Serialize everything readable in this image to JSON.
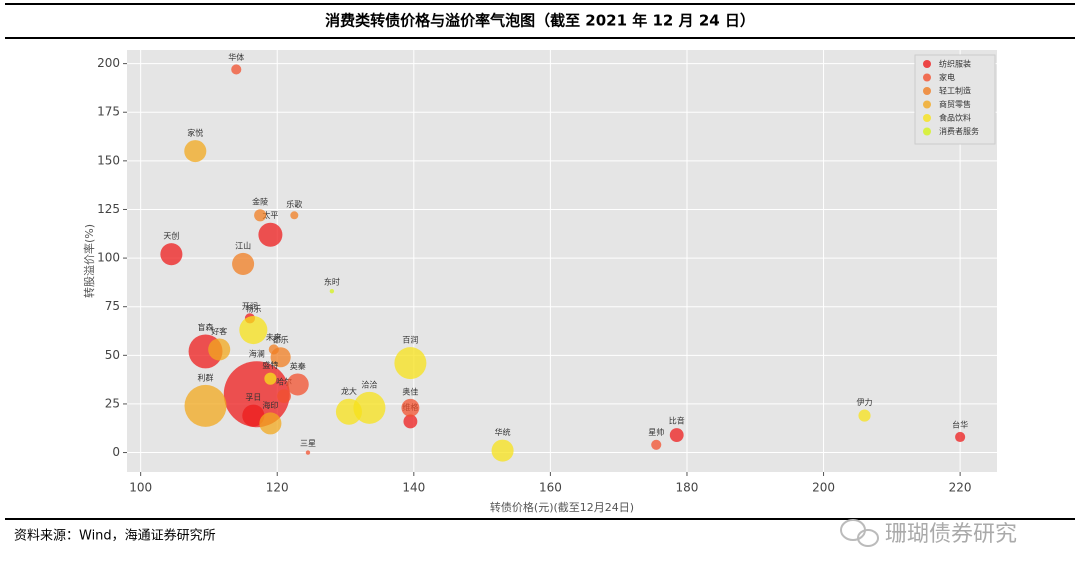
{
  "chart_data": {
    "type": "bubble",
    "title": "消费类转债价格与溢价率气泡图（截至 2021 年 12 月 24 日）",
    "x_label": "转债价格(元)(截至12月24日)",
    "y_label": "转股溢价率(%)",
    "xlim": [
      98,
      225.4
    ],
    "ylim": [
      -10,
      207
    ],
    "xticks": [
      100,
      120,
      140,
      160,
      180,
      200,
      220
    ],
    "yticks": [
      0,
      25,
      50,
      75,
      100,
      125,
      150,
      175,
      200
    ],
    "grid": true,
    "legend": "upper right",
    "series": [
      {
        "name": "纺织服装",
        "color": "#ee1c1c",
        "labels": [
          "太平",
          "天创",
          "开润",
          "盲森",
          "海澜",
          "孚日",
          "维格",
          "比音",
          "台华"
        ],
        "x": [
          119,
          104.5,
          116,
          109.5,
          117,
          116.5,
          139.5,
          178.5,
          220
        ],
        "values": [
          112,
          102,
          69,
          52,
          30,
          19,
          16,
          9,
          8
        ],
        "sizes": [
          9,
          7.6,
          1.6,
          18,
          68,
          7.6,
          3,
          3,
          1.6
        ]
      },
      {
        "name": "家电",
        "color": "#f2502e",
        "labels": [
          "华体",
          "哈尔",
          "英秦",
          "三星",
          "奥佳",
          "星帅"
        ],
        "x": [
          114,
          121,
          123,
          124.5,
          139.5,
          175.5
        ],
        "values": [
          197,
          29,
          35,
          0,
          23,
          4
        ],
        "sizes": [
          1.6,
          3,
          7.6,
          0.3,
          5,
          1.6
        ]
      },
      {
        "name": "轻工制造",
        "color": "#f07d22",
        "labels": [
          "金陵",
          "乐歌",
          "江山",
          "未来",
          "都乐"
        ],
        "x": [
          117.5,
          122.5,
          115,
          119.5,
          120.5
        ],
        "values": [
          122,
          122,
          97,
          53,
          49
        ],
        "sizes": [
          2.3,
          1,
          7.6,
          1.6,
          6.3
        ]
      },
      {
        "name": "商贸零售",
        "color": "#f2a81e",
        "labels": [
          "家悦",
          "好客",
          "利群",
          "海印"
        ],
        "x": [
          108,
          111.5,
          109.5,
          119
        ],
        "values": [
          155,
          53,
          24,
          15
        ],
        "sizes": [
          7.6,
          7.6,
          27.6,
          7.6
        ]
      },
      {
        "name": "食品饮料",
        "color": "#f7e21a",
        "labels": [
          "畅乐",
          "百润",
          "盛特",
          "龙大",
          "洽洽",
          "华统",
          "伊力"
        ],
        "x": [
          116.5,
          139.5,
          119,
          130.5,
          133.5,
          153,
          206
        ],
        "values": [
          63,
          46,
          38,
          21,
          23,
          1,
          19
        ],
        "sizes": [
          12.3,
          16,
          2.3,
          10.6,
          16,
          7.6,
          2.3
        ]
      },
      {
        "name": "消费者服务",
        "color": "#d4f21a",
        "labels": [
          "东时"
        ],
        "x": [
          128
        ],
        "values": [
          83
        ],
        "sizes": [
          0.3
        ]
      }
    ]
  },
  "source": "资料来源：Wind，海通证券研究所",
  "watermark": "珊瑚债券研究"
}
